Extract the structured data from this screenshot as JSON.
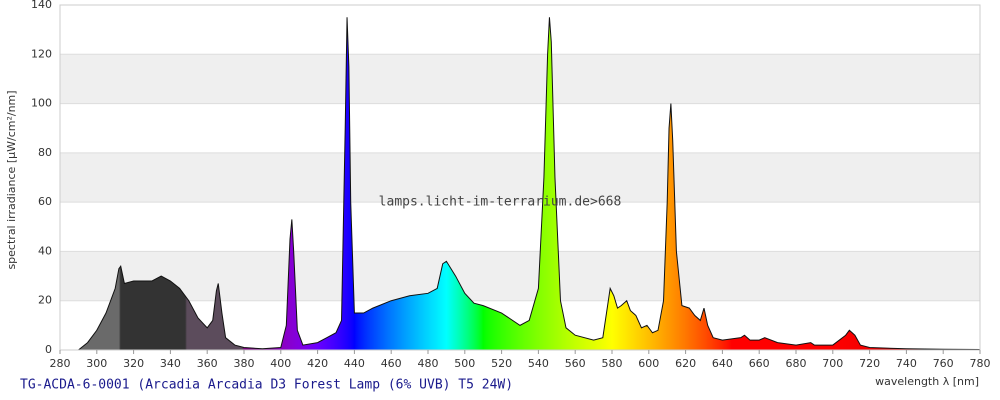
{
  "chart_data": {
    "type": "spectrum",
    "title": "TG-ACDA-6-0001 (Arcadia Arcadia D3 Forest Lamp (6% UVB) T5 24W)",
    "watermark": "lamps.licht-im-terrarium.de>668",
    "y_label": "spectral irradiance [µW/cm²/nm]",
    "x_label": "wavelength λ [nm]",
    "xlim": [
      280,
      780
    ],
    "ylim": [
      0,
      140
    ],
    "xticks": [
      280,
      300,
      320,
      340,
      360,
      380,
      400,
      420,
      440,
      460,
      480,
      500,
      520,
      540,
      560,
      580,
      600,
      620,
      640,
      660,
      680,
      700,
      720,
      740,
      760,
      780
    ],
    "yticks": [
      0,
      20,
      40,
      60,
      80,
      100,
      120,
      140
    ],
    "banded_grid": true,
    "x": [
      290,
      295,
      300,
      305,
      310,
      312,
      313,
      315,
      320,
      325,
      330,
      335,
      340,
      345,
      350,
      355,
      360,
      363,
      365,
      366,
      368,
      370,
      375,
      380,
      390,
      400,
      403,
      405,
      406,
      407,
      409,
      412,
      420,
      425,
      430,
      433,
      435,
      436,
      437,
      438,
      440,
      445,
      450,
      460,
      470,
      480,
      485,
      488,
      490,
      495,
      500,
      505,
      510,
      520,
      530,
      535,
      540,
      543,
      545,
      546,
      547,
      549,
      552,
      555,
      560,
      570,
      575,
      577,
      579,
      581,
      583,
      585,
      588,
      590,
      593,
      596,
      599,
      602,
      605,
      608,
      610,
      611,
      612,
      613,
      615,
      618,
      622,
      625,
      628,
      630,
      632,
      635,
      640,
      650,
      652,
      655,
      660,
      663,
      670,
      680,
      688,
      690,
      700,
      707,
      709,
      712,
      715,
      720,
      740,
      760,
      780
    ],
    "values": [
      0,
      3,
      8,
      15,
      25,
      33,
      34,
      27,
      28,
      28,
      28,
      30,
      28,
      25,
      20,
      13,
      9,
      12,
      24,
      27,
      15,
      5,
      2,
      1,
      0.5,
      1,
      10,
      45,
      53,
      40,
      8,
      2,
      3,
      5,
      7,
      12,
      90,
      135,
      115,
      60,
      15,
      15,
      17,
      20,
      22,
      23,
      25,
      35,
      36,
      30,
      23,
      19,
      18,
      15,
      10,
      12,
      25,
      70,
      120,
      135,
      125,
      70,
      20,
      9,
      6,
      4,
      5,
      15,
      25,
      22,
      17,
      18,
      20,
      16,
      14,
      9,
      10,
      7,
      8,
      20,
      60,
      90,
      100,
      85,
      40,
      18,
      17,
      14,
      12,
      17,
      10,
      5,
      4,
      5,
      6,
      4,
      4,
      5,
      3,
      2,
      3,
      2,
      2,
      6,
      8,
      6,
      2,
      1,
      0.5,
      0.3,
      0.2
    ]
  }
}
